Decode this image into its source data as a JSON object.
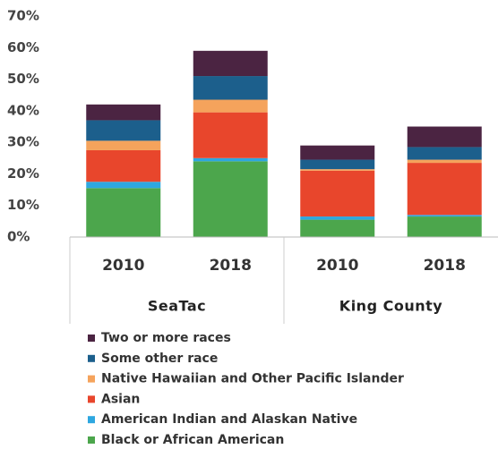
{
  "chart_data": {
    "type": "stacked_bar",
    "categories": [
      "2010",
      "2018",
      "2010",
      "2018"
    ],
    "groups": [
      "SeaTac",
      "King County"
    ],
    "series": [
      {
        "name": "Black or African American",
        "color": "#4ca64c",
        "values": [
          15.5,
          24,
          5.5,
          6.5
        ]
      },
      {
        "name": "American Indian and Alaskan Native",
        "color": "#2ea7e0",
        "values": [
          2,
          1,
          1,
          0.5
        ]
      },
      {
        "name": "Asian",
        "color": "#e8462c",
        "values": [
          10,
          14.5,
          14.5,
          16.5
        ]
      },
      {
        "name": "Native Hawaiian and Other Pacific Islander",
        "color": "#f5a35c",
        "values": [
          3,
          4,
          0.5,
          1
        ]
      },
      {
        "name": "Some other race",
        "color": "#1c5f8c",
        "values": [
          6.5,
          7.5,
          3,
          4
        ]
      },
      {
        "name": "Two or more races",
        "color": "#4b2442",
        "values": [
          5,
          8,
          4.5,
          6.5
        ]
      }
    ],
    "ylim": [
      0,
      70
    ],
    "yticks": [
      {
        "value": 0,
        "label": "0%"
      },
      {
        "value": 10,
        "label": "10%"
      },
      {
        "value": 20,
        "label": "20%"
      },
      {
        "value": 30,
        "label": "30%"
      },
      {
        "value": 40,
        "label": "40%"
      },
      {
        "value": 50,
        "label": "50%"
      },
      {
        "value": 60,
        "label": "60%"
      },
      {
        "value": 70,
        "label": "70%"
      }
    ],
    "grid": false,
    "legend": "bottom"
  }
}
